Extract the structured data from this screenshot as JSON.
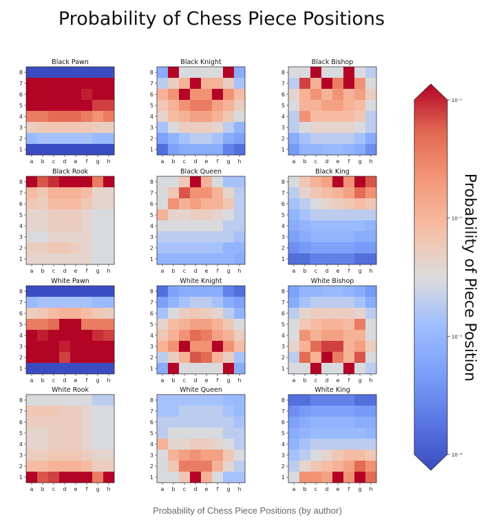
{
  "title": "Probability of Chess Piece Positions",
  "caption": "Probability of Chess Piece Positions (by author)",
  "chart_data": {
    "type": "heatmap",
    "title": "Probability of Chess Piece Positions",
    "colormap": "coolwarm",
    "scale": "log",
    "value_range": [
      0.0001,
      0.1
    ],
    "colorbar": {
      "label": "Probability of Piece Position",
      "tick_labels": [
        "10⁻¹",
        "10⁻²",
        "10⁻³",
        "10⁻⁴"
      ],
      "tick_values": [
        0.1,
        0.01,
        0.001,
        0.0001
      ],
      "extend": "both"
    },
    "files": [
      "a",
      "b",
      "c",
      "d",
      "e",
      "f",
      "g",
      "h"
    ],
    "ranks": [
      "8",
      "7",
      "6",
      "5",
      "4",
      "3",
      "2",
      "1"
    ],
    "panels": [
      {
        "title": "Black Pawn",
        "values": [
          [
            0.0001,
            0.0001,
            0.0001,
            0.0001,
            0.0001,
            0.0001,
            0.0001,
            0.0001
          ],
          [
            0.1,
            0.1,
            0.1,
            0.1,
            0.1,
            0.1,
            0.1,
            0.1
          ],
          [
            0.1,
            0.1,
            0.1,
            0.1,
            0.1,
            0.08,
            0.1,
            0.1
          ],
          [
            0.1,
            0.1,
            0.1,
            0.1,
            0.1,
            0.1,
            0.06,
            0.06
          ],
          [
            0.03,
            0.03,
            0.04,
            0.04,
            0.04,
            0.03,
            0.02,
            0.03
          ],
          [
            0.005,
            0.006,
            0.006,
            0.006,
            0.006,
            0.006,
            0.005,
            0.005
          ],
          [
            0.0012,
            0.0015,
            0.0015,
            0.0015,
            0.0015,
            0.0015,
            0.0012,
            0.0012
          ],
          [
            0.0001,
            0.0001,
            0.0001,
            0.0001,
            0.0001,
            0.0001,
            0.0001,
            0.0001
          ]
        ]
      },
      {
        "title": "Black Knight",
        "values": [
          [
            0.0008,
            0.1,
            0.003,
            0.003,
            0.003,
            0.003,
            0.1,
            0.0008
          ],
          [
            0.002,
            0.005,
            0.01,
            0.1,
            0.01,
            0.01,
            0.005,
            0.0015
          ],
          [
            0.01,
            0.02,
            0.1,
            0.02,
            0.02,
            0.1,
            0.02,
            0.008
          ],
          [
            0.006,
            0.01,
            0.02,
            0.03,
            0.03,
            0.015,
            0.01,
            0.005
          ],
          [
            0.004,
            0.008,
            0.01,
            0.015,
            0.015,
            0.01,
            0.006,
            0.003
          ],
          [
            0.0015,
            0.003,
            0.005,
            0.005,
            0.005,
            0.004,
            0.002,
            0.001
          ],
          [
            0.0006,
            0.001,
            0.0015,
            0.002,
            0.002,
            0.0015,
            0.0008,
            0.0006
          ],
          [
            0.0002,
            0.0006,
            0.0008,
            0.0008,
            0.0008,
            0.0008,
            0.0003,
            0.0002
          ]
        ]
      },
      {
        "title": "Black Bishop",
        "values": [
          [
            0.003,
            0.003,
            0.1,
            0.003,
            0.003,
            0.1,
            0.003,
            0.002
          ],
          [
            0.002,
            0.06,
            0.01,
            0.1,
            0.03,
            0.1,
            0.02,
            0.003
          ],
          [
            0.004,
            0.01,
            0.02,
            0.01,
            0.02,
            0.01,
            0.015,
            0.005
          ],
          [
            0.003,
            0.01,
            0.01,
            0.015,
            0.015,
            0.01,
            0.008,
            0.003
          ],
          [
            0.002,
            0.02,
            0.008,
            0.008,
            0.008,
            0.008,
            0.006,
            0.002
          ],
          [
            0.002,
            0.003,
            0.004,
            0.004,
            0.004,
            0.004,
            0.003,
            0.002
          ],
          [
            0.0008,
            0.0015,
            0.002,
            0.002,
            0.002,
            0.002,
            0.0015,
            0.0008
          ],
          [
            0.0005,
            0.001,
            0.001,
            0.0012,
            0.0012,
            0.001,
            0.0008,
            0.0004
          ]
        ]
      },
      {
        "title": "Black Rook",
        "values": [
          [
            0.1,
            0.05,
            0.07,
            0.1,
            0.1,
            0.1,
            0.03,
            0.1
          ],
          [
            0.008,
            0.006,
            0.01,
            0.01,
            0.01,
            0.008,
            0.004,
            0.004
          ],
          [
            0.006,
            0.005,
            0.008,
            0.008,
            0.008,
            0.006,
            0.004,
            0.004
          ],
          [
            0.004,
            0.004,
            0.005,
            0.005,
            0.005,
            0.004,
            0.003,
            0.003
          ],
          [
            0.004,
            0.004,
            0.005,
            0.005,
            0.005,
            0.004,
            0.003,
            0.003
          ],
          [
            0.003,
            0.003,
            0.004,
            0.004,
            0.004,
            0.004,
            0.003,
            0.003
          ],
          [
            0.005,
            0.005,
            0.006,
            0.006,
            0.005,
            0.004,
            0.003,
            0.003
          ],
          [
            0.004,
            0.004,
            0.004,
            0.004,
            0.004,
            0.004,
            0.003,
            0.003
          ]
        ]
      },
      {
        "title": "Black Queen",
        "values": [
          [
            0.003,
            0.003,
            0.006,
            0.1,
            0.01,
            0.003,
            0.0015,
            0.0015
          ],
          [
            0.003,
            0.006,
            0.05,
            0.02,
            0.02,
            0.01,
            0.004,
            0.002
          ],
          [
            0.003,
            0.02,
            0.01,
            0.015,
            0.01,
            0.01,
            0.006,
            0.002
          ],
          [
            0.01,
            0.004,
            0.004,
            0.005,
            0.005,
            0.004,
            0.003,
            0.002
          ],
          [
            0.003,
            0.003,
            0.003,
            0.003,
            0.003,
            0.003,
            0.002,
            0.002
          ],
          [
            0.002,
            0.002,
            0.002,
            0.002,
            0.002,
            0.002,
            0.002,
            0.0015
          ],
          [
            0.0015,
            0.0015,
            0.0015,
            0.0015,
            0.0015,
            0.0015,
            0.001,
            0.001
          ],
          [
            0.001,
            0.001,
            0.001,
            0.001,
            0.001,
            0.001,
            0.001,
            0.0008
          ]
        ]
      },
      {
        "title": "Black King",
        "values": [
          [
            0.003,
            0.006,
            0.01,
            0.015,
            0.1,
            0.02,
            0.1,
            0.05
          ],
          [
            0.002,
            0.004,
            0.006,
            0.008,
            0.01,
            0.015,
            0.04,
            0.02
          ],
          [
            0.0015,
            0.002,
            0.003,
            0.004,
            0.005,
            0.006,
            0.008,
            0.006
          ],
          [
            0.001,
            0.0015,
            0.002,
            0.002,
            0.002,
            0.002,
            0.002,
            0.002
          ],
          [
            0.0008,
            0.001,
            0.0012,
            0.0012,
            0.0012,
            0.0012,
            0.0012,
            0.001
          ],
          [
            0.0006,
            0.0008,
            0.001,
            0.001,
            0.001,
            0.001,
            0.0008,
            0.0008
          ],
          [
            0.0004,
            0.0005,
            0.0006,
            0.0006,
            0.0006,
            0.0006,
            0.0005,
            0.0005
          ],
          [
            0.0002,
            0.0002,
            0.0003,
            0.0003,
            0.0003,
            0.0003,
            0.0002,
            0.0002
          ]
        ]
      },
      {
        "title": "White Pawn",
        "values": [
          [
            0.0001,
            0.0001,
            0.0001,
            0.0001,
            0.0001,
            0.0001,
            0.0001,
            0.0001
          ],
          [
            0.0012,
            0.0015,
            0.0015,
            0.0015,
            0.0015,
            0.0015,
            0.0012,
            0.0012
          ],
          [
            0.005,
            0.006,
            0.008,
            0.01,
            0.01,
            0.008,
            0.006,
            0.005
          ],
          [
            0.03,
            0.03,
            0.04,
            0.1,
            0.1,
            0.03,
            0.03,
            0.03
          ],
          [
            0.1,
            0.08,
            0.1,
            0.1,
            0.1,
            0.1,
            0.07,
            0.06
          ],
          [
            0.1,
            0.1,
            0.1,
            0.08,
            0.1,
            0.1,
            0.1,
            0.1
          ],
          [
            0.1,
            0.1,
            0.1,
            0.06,
            0.1,
            0.1,
            0.1,
            0.1
          ],
          [
            0.0001,
            0.0001,
            0.0001,
            0.0001,
            0.0001,
            0.0001,
            0.0001,
            0.0001
          ]
        ]
      },
      {
        "title": "White Knight",
        "values": [
          [
            0.0002,
            0.0006,
            0.0008,
            0.0008,
            0.0008,
            0.0008,
            0.0003,
            0.0002
          ],
          [
            0.0006,
            0.001,
            0.0015,
            0.002,
            0.002,
            0.0015,
            0.0008,
            0.0006
          ],
          [
            0.0015,
            0.003,
            0.005,
            0.006,
            0.005,
            0.004,
            0.002,
            0.001
          ],
          [
            0.004,
            0.008,
            0.01,
            0.015,
            0.015,
            0.01,
            0.006,
            0.003
          ],
          [
            0.006,
            0.01,
            0.02,
            0.04,
            0.03,
            0.015,
            0.01,
            0.005
          ],
          [
            0.01,
            0.02,
            0.1,
            0.02,
            0.02,
            0.1,
            0.02,
            0.008
          ],
          [
            0.002,
            0.005,
            0.01,
            0.05,
            0.04,
            0.01,
            0.005,
            0.0015
          ],
          [
            0.0008,
            0.1,
            0.003,
            0.003,
            0.003,
            0.003,
            0.1,
            0.0008
          ]
        ]
      },
      {
        "title": "White Bishop",
        "values": [
          [
            0.0006,
            0.001,
            0.001,
            0.0012,
            0.0012,
            0.001,
            0.0008,
            0.0005
          ],
          [
            0.0008,
            0.0015,
            0.002,
            0.002,
            0.002,
            0.002,
            0.0015,
            0.0008
          ],
          [
            0.002,
            0.004,
            0.005,
            0.005,
            0.005,
            0.005,
            0.004,
            0.002
          ],
          [
            0.003,
            0.006,
            0.008,
            0.01,
            0.01,
            0.008,
            0.03,
            0.003
          ],
          [
            0.003,
            0.02,
            0.01,
            0.015,
            0.015,
            0.01,
            0.01,
            0.003
          ],
          [
            0.004,
            0.01,
            0.04,
            0.06,
            0.06,
            0.01,
            0.015,
            0.005
          ],
          [
            0.002,
            0.04,
            0.01,
            0.1,
            0.03,
            0.01,
            0.05,
            0.003
          ],
          [
            0.003,
            0.003,
            0.1,
            0.003,
            0.003,
            0.1,
            0.003,
            0.002
          ]
        ]
      },
      {
        "title": "White Rook",
        "values": [
          [
            0.003,
            0.003,
            0.003,
            0.003,
            0.003,
            0.003,
            0.002,
            0.002
          ],
          [
            0.006,
            0.006,
            0.006,
            0.005,
            0.005,
            0.004,
            0.003,
            0.003
          ],
          [
            0.005,
            0.005,
            0.005,
            0.005,
            0.005,
            0.004,
            0.003,
            0.003
          ],
          [
            0.004,
            0.004,
            0.005,
            0.005,
            0.005,
            0.004,
            0.003,
            0.003
          ],
          [
            0.004,
            0.004,
            0.005,
            0.005,
            0.005,
            0.004,
            0.003,
            0.003
          ],
          [
            0.005,
            0.005,
            0.006,
            0.006,
            0.006,
            0.005,
            0.004,
            0.004
          ],
          [
            0.008,
            0.008,
            0.01,
            0.01,
            0.01,
            0.008,
            0.005,
            0.005
          ],
          [
            0.1,
            0.05,
            0.06,
            0.1,
            0.1,
            0.1,
            0.03,
            0.1
          ]
        ]
      },
      {
        "title": "White Queen",
        "values": [
          [
            0.0015,
            0.0015,
            0.0015,
            0.0015,
            0.0015,
            0.0015,
            0.0012,
            0.0012
          ],
          [
            0.0015,
            0.0015,
            0.002,
            0.002,
            0.002,
            0.002,
            0.0015,
            0.0012
          ],
          [
            0.002,
            0.002,
            0.002,
            0.002,
            0.002,
            0.002,
            0.002,
            0.0015
          ],
          [
            0.002,
            0.003,
            0.003,
            0.003,
            0.003,
            0.003,
            0.002,
            0.002
          ],
          [
            0.01,
            0.004,
            0.004,
            0.005,
            0.005,
            0.004,
            0.003,
            0.002
          ],
          [
            0.003,
            0.01,
            0.015,
            0.02,
            0.015,
            0.015,
            0.006,
            0.003
          ],
          [
            0.003,
            0.006,
            0.03,
            0.03,
            0.03,
            0.01,
            0.004,
            0.002
          ],
          [
            0.003,
            0.003,
            0.006,
            0.1,
            0.01,
            0.003,
            0.0015,
            0.0015
          ]
        ]
      },
      {
        "title": "White King",
        "values": [
          [
            0.0002,
            0.0002,
            0.0003,
            0.0003,
            0.0003,
            0.0003,
            0.0002,
            0.0002
          ],
          [
            0.0004,
            0.0005,
            0.0006,
            0.0006,
            0.0006,
            0.0006,
            0.0005,
            0.0005
          ],
          [
            0.0006,
            0.0008,
            0.001,
            0.001,
            0.001,
            0.001,
            0.0008,
            0.0008
          ],
          [
            0.0008,
            0.001,
            0.0012,
            0.0012,
            0.0012,
            0.0012,
            0.0012,
            0.001
          ],
          [
            0.001,
            0.0015,
            0.002,
            0.002,
            0.002,
            0.002,
            0.002,
            0.002
          ],
          [
            0.0015,
            0.002,
            0.003,
            0.004,
            0.006,
            0.008,
            0.008,
            0.006
          ],
          [
            0.002,
            0.004,
            0.006,
            0.008,
            0.01,
            0.015,
            0.04,
            0.02
          ],
          [
            0.003,
            0.02,
            0.02,
            0.015,
            0.1,
            0.02,
            0.1,
            0.04
          ]
        ]
      }
    ]
  }
}
